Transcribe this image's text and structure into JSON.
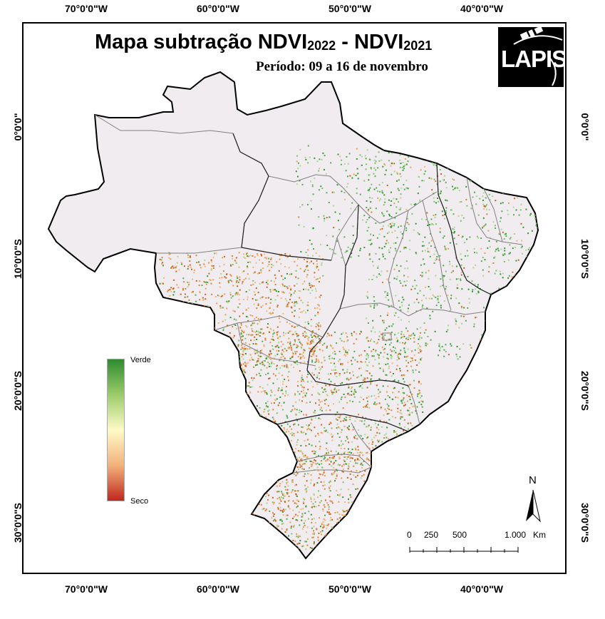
{
  "title": {
    "main": "Mapa subtração NDVI",
    "year_a": "2022",
    "separator": " - NDVI",
    "year_b": "2021"
  },
  "subtitle": "Período: 09 a 16 de novembro",
  "logo": {
    "text": "LAPIS",
    "icon": "satellite-icon"
  },
  "longitude_labels": [
    "70°0'0\"W",
    "60°0'0\"W",
    "50°0'0\"W",
    "40°0'0\"W"
  ],
  "latitude_labels": [
    "0°0'0\"",
    "10°0'0\"S",
    "20°0'0\"S",
    "30°0'0\"S"
  ],
  "legend": {
    "top_label": "Verde",
    "bottom_label": "Seco",
    "colors": [
      "#2e8b2e",
      "#9ccc6a",
      "#fffac8",
      "#f2b27a",
      "#c0281e"
    ]
  },
  "scale_bar": {
    "ticks": [
      "0",
      "250",
      "500",
      "1.000"
    ],
    "unit": "Km"
  },
  "north_label": "N",
  "colors": {
    "land": "#f0ecf0",
    "border": "#000000",
    "state_border": "#808080",
    "green": "#2e9a2e",
    "orange": "#e8a050"
  }
}
